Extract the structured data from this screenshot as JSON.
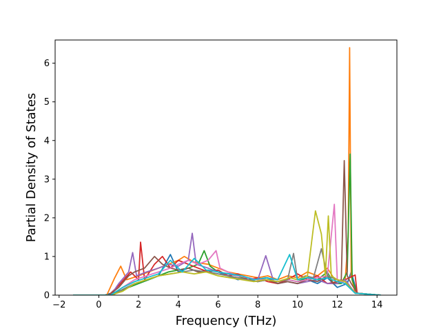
{
  "chart_data": {
    "type": "line",
    "title": "",
    "xlabel": "Frequency (THz)",
    "ylabel": "Partial Density of States",
    "xlim": [
      -2.2,
      15.0
    ],
    "ylim": [
      0,
      6.6
    ],
    "xticks": [
      -2,
      0,
      2,
      4,
      6,
      8,
      10,
      12,
      14
    ],
    "yticks": [
      0,
      1,
      2,
      3,
      4,
      5,
      6
    ],
    "grid": false,
    "legend": "none",
    "colors": [
      "#1f77b4",
      "#ff7f0e",
      "#2ca02c",
      "#d62728",
      "#9467bd",
      "#8c564b",
      "#e377c2",
      "#7f7f7f",
      "#bcbd22",
      "#17becf"
    ],
    "series": [
      {
        "color": "#1f77b4",
        "x": [
          -1.3,
          0.3,
          0.6,
          1.0,
          1.5,
          2.0,
          2.5,
          3.0,
          3.6,
          4.0,
          4.5,
          5.0,
          5.5,
          6.0,
          6.5,
          7.0,
          7.5,
          8.0,
          8.5,
          9.0,
          9.5,
          10.0,
          10.5,
          11.0,
          11.5,
          12.0,
          12.5,
          12.7,
          13.0,
          14.2
        ],
        "y": [
          0,
          0,
          0.05,
          0.1,
          0.2,
          0.3,
          0.4,
          0.5,
          1.05,
          0.6,
          0.7,
          0.6,
          0.65,
          0.6,
          0.5,
          0.4,
          0.45,
          0.4,
          0.45,
          0.3,
          0.35,
          0.3,
          0.4,
          0.3,
          0.45,
          0.2,
          0.3,
          0.6,
          0.05,
          0
        ]
      },
      {
        "color": "#ff7f0e",
        "x": [
          -1.3,
          0.4,
          0.8,
          1.1,
          1.4,
          2.0,
          2.5,
          3.0,
          3.5,
          4.0,
          4.3,
          4.8,
          5.5,
          6.0,
          6.5,
          7.0,
          7.5,
          8.0,
          8.5,
          9.0,
          9.5,
          10.0,
          10.5,
          11.0,
          11.5,
          12.0,
          12.4,
          12.55,
          12.62,
          12.7,
          12.9,
          14.2
        ],
        "y": [
          0,
          0,
          0.45,
          0.75,
          0.4,
          0.5,
          0.6,
          0.7,
          0.8,
          0.9,
          1.0,
          0.85,
          0.8,
          0.7,
          0.6,
          0.55,
          0.5,
          0.45,
          0.5,
          0.4,
          0.5,
          0.45,
          0.6,
          0.5,
          0.7,
          0.3,
          0.4,
          1.5,
          6.4,
          0.5,
          0.05,
          0
        ]
      },
      {
        "color": "#2ca02c",
        "x": [
          -1.3,
          0.5,
          1.0,
          1.5,
          2.0,
          2.5,
          3.0,
          3.5,
          4.0,
          4.5,
          5.0,
          5.3,
          5.6,
          6.0,
          6.5,
          7.0,
          7.5,
          8.0,
          8.5,
          9.0,
          9.5,
          10.0,
          10.5,
          11.0,
          11.5,
          11.8,
          12.2,
          12.5,
          12.65,
          12.75,
          13.0,
          14.2
        ],
        "y": [
          0,
          0,
          0.1,
          0.2,
          0.3,
          0.4,
          0.5,
          0.6,
          0.65,
          0.7,
          0.8,
          1.15,
          0.75,
          0.6,
          0.55,
          0.5,
          0.4,
          0.35,
          0.4,
          0.3,
          0.4,
          0.35,
          0.45,
          0.4,
          0.6,
          0.3,
          0.3,
          0.6,
          3.65,
          0.4,
          0.05,
          0
        ]
      },
      {
        "color": "#d62728",
        "x": [
          -1.3,
          0.5,
          1.0,
          1.6,
          2.0,
          2.1,
          2.3,
          2.8,
          3.2,
          3.6,
          4.0,
          4.5,
          5.0,
          5.5,
          6.0,
          6.5,
          7.0,
          7.5,
          8.0,
          8.5,
          9.0,
          9.5,
          10.0,
          10.5,
          11.0,
          11.5,
          12.0,
          12.4,
          12.9,
          13.0,
          14.2
        ],
        "y": [
          0,
          0,
          0.25,
          0.6,
          0.4,
          1.37,
          0.4,
          0.8,
          1.0,
          0.7,
          0.9,
          0.8,
          0.7,
          0.6,
          0.65,
          0.5,
          0.55,
          0.4,
          0.45,
          0.35,
          0.3,
          0.4,
          0.55,
          0.4,
          0.5,
          0.3,
          0.35,
          0.4,
          0.52,
          0.05,
          0
        ]
      },
      {
        "color": "#9467bd",
        "x": [
          -1.3,
          0.6,
          1.0,
          1.5,
          1.7,
          1.9,
          2.4,
          3.0,
          3.5,
          4.0,
          4.5,
          4.7,
          4.9,
          5.5,
          6.0,
          6.5,
          7.0,
          7.5,
          8.0,
          8.4,
          8.8,
          9.0,
          9.5,
          10.0,
          10.5,
          11.0,
          11.5,
          12.0,
          12.4,
          12.9,
          14.2
        ],
        "y": [
          0,
          0,
          0.3,
          0.6,
          1.1,
          0.5,
          0.6,
          0.7,
          0.8,
          0.75,
          0.9,
          1.6,
          0.8,
          0.7,
          0.6,
          0.55,
          0.5,
          0.45,
          0.4,
          1.02,
          0.35,
          0.3,
          0.35,
          0.3,
          0.35,
          0.4,
          0.3,
          0.3,
          0.4,
          0.05,
          0
        ]
      },
      {
        "color": "#8c564b",
        "x": [
          -1.3,
          0.5,
          1.0,
          1.5,
          1.8,
          2.3,
          2.8,
          3.2,
          3.6,
          4.0,
          4.5,
          5.0,
          5.5,
          6.0,
          6.5,
          7.0,
          7.5,
          8.0,
          8.5,
          9.0,
          9.5,
          10.0,
          10.5,
          11.0,
          11.5,
          11.8,
          12.2,
          12.35,
          12.5,
          12.7,
          13.0,
          14.2
        ],
        "y": [
          0,
          0,
          0.2,
          0.5,
          0.6,
          0.7,
          1.0,
          0.8,
          0.7,
          0.65,
          0.7,
          0.6,
          0.6,
          0.55,
          0.5,
          0.45,
          0.4,
          0.35,
          0.4,
          0.3,
          0.35,
          0.3,
          0.4,
          0.35,
          0.5,
          0.3,
          0.4,
          3.48,
          0.5,
          0.3,
          0.05,
          0
        ]
      },
      {
        "color": "#e377c2",
        "x": [
          -1.3,
          0.6,
          1.2,
          1.8,
          2.4,
          3.0,
          3.6,
          4.0,
          4.5,
          5.0,
          5.5,
          5.9,
          6.1,
          6.5,
          7.0,
          7.5,
          8.0,
          8.5,
          9.0,
          9.5,
          10.0,
          10.5,
          11.0,
          11.5,
          11.85,
          12.0,
          12.4,
          12.9,
          14.2
        ],
        "y": [
          0,
          0,
          0.2,
          0.4,
          0.5,
          0.6,
          0.7,
          0.8,
          0.9,
          0.8,
          0.9,
          1.15,
          0.7,
          0.6,
          0.5,
          0.45,
          0.4,
          0.4,
          0.35,
          0.4,
          0.35,
          0.4,
          0.45,
          0.5,
          2.35,
          0.4,
          0.3,
          0.05,
          0
        ]
      },
      {
        "color": "#7f7f7f",
        "x": [
          -1.3,
          0.7,
          1.2,
          1.8,
          2.4,
          3.0,
          3.6,
          4.2,
          4.8,
          5.4,
          6.0,
          6.5,
          7.0,
          7.5,
          8.0,
          8.5,
          9.0,
          9.5,
          9.8,
          10.0,
          10.4,
          10.8,
          11.2,
          11.5,
          12.0,
          12.4,
          12.9,
          14.2
        ],
        "y": [
          0,
          0,
          0.15,
          0.3,
          0.4,
          0.5,
          0.55,
          0.6,
          0.65,
          0.6,
          0.55,
          0.5,
          0.45,
          0.4,
          0.35,
          0.4,
          0.35,
          0.4,
          1.08,
          0.4,
          0.5,
          0.45,
          1.2,
          0.5,
          0.4,
          0.35,
          0.05,
          0
        ]
      },
      {
        "color": "#bcbd22",
        "x": [
          -1.3,
          0.6,
          1.2,
          1.8,
          2.4,
          3.0,
          3.6,
          4.2,
          4.8,
          5.4,
          6.0,
          6.6,
          7.2,
          7.8,
          8.4,
          9.0,
          9.6,
          10.0,
          10.5,
          10.9,
          11.2,
          11.4,
          11.55,
          11.7,
          12.0,
          12.4,
          12.9,
          14.2
        ],
        "y": [
          0,
          0,
          0.1,
          0.3,
          0.4,
          0.5,
          0.55,
          0.6,
          0.55,
          0.6,
          0.5,
          0.45,
          0.4,
          0.35,
          0.4,
          0.35,
          0.45,
          0.4,
          0.5,
          2.18,
          1.58,
          0.5,
          2.05,
          0.5,
          0.4,
          0.35,
          0.05,
          0
        ]
      },
      {
        "color": "#17becf",
        "x": [
          -1.3,
          0.6,
          1.2,
          1.8,
          2.4,
          3.0,
          3.6,
          4.2,
          4.8,
          5.4,
          6.0,
          6.6,
          7.2,
          7.8,
          8.4,
          9.0,
          9.6,
          10.0,
          10.5,
          11.0,
          11.5,
          12.0,
          12.4,
          12.9,
          14.2
        ],
        "y": [
          0,
          0,
          0.2,
          0.35,
          0.45,
          0.55,
          0.9,
          0.6,
          0.95,
          0.65,
          0.6,
          0.55,
          0.5,
          0.4,
          0.45,
          0.4,
          1.05,
          0.4,
          0.45,
          0.4,
          0.45,
          0.35,
          0.3,
          0.05,
          0
        ]
      }
    ]
  }
}
